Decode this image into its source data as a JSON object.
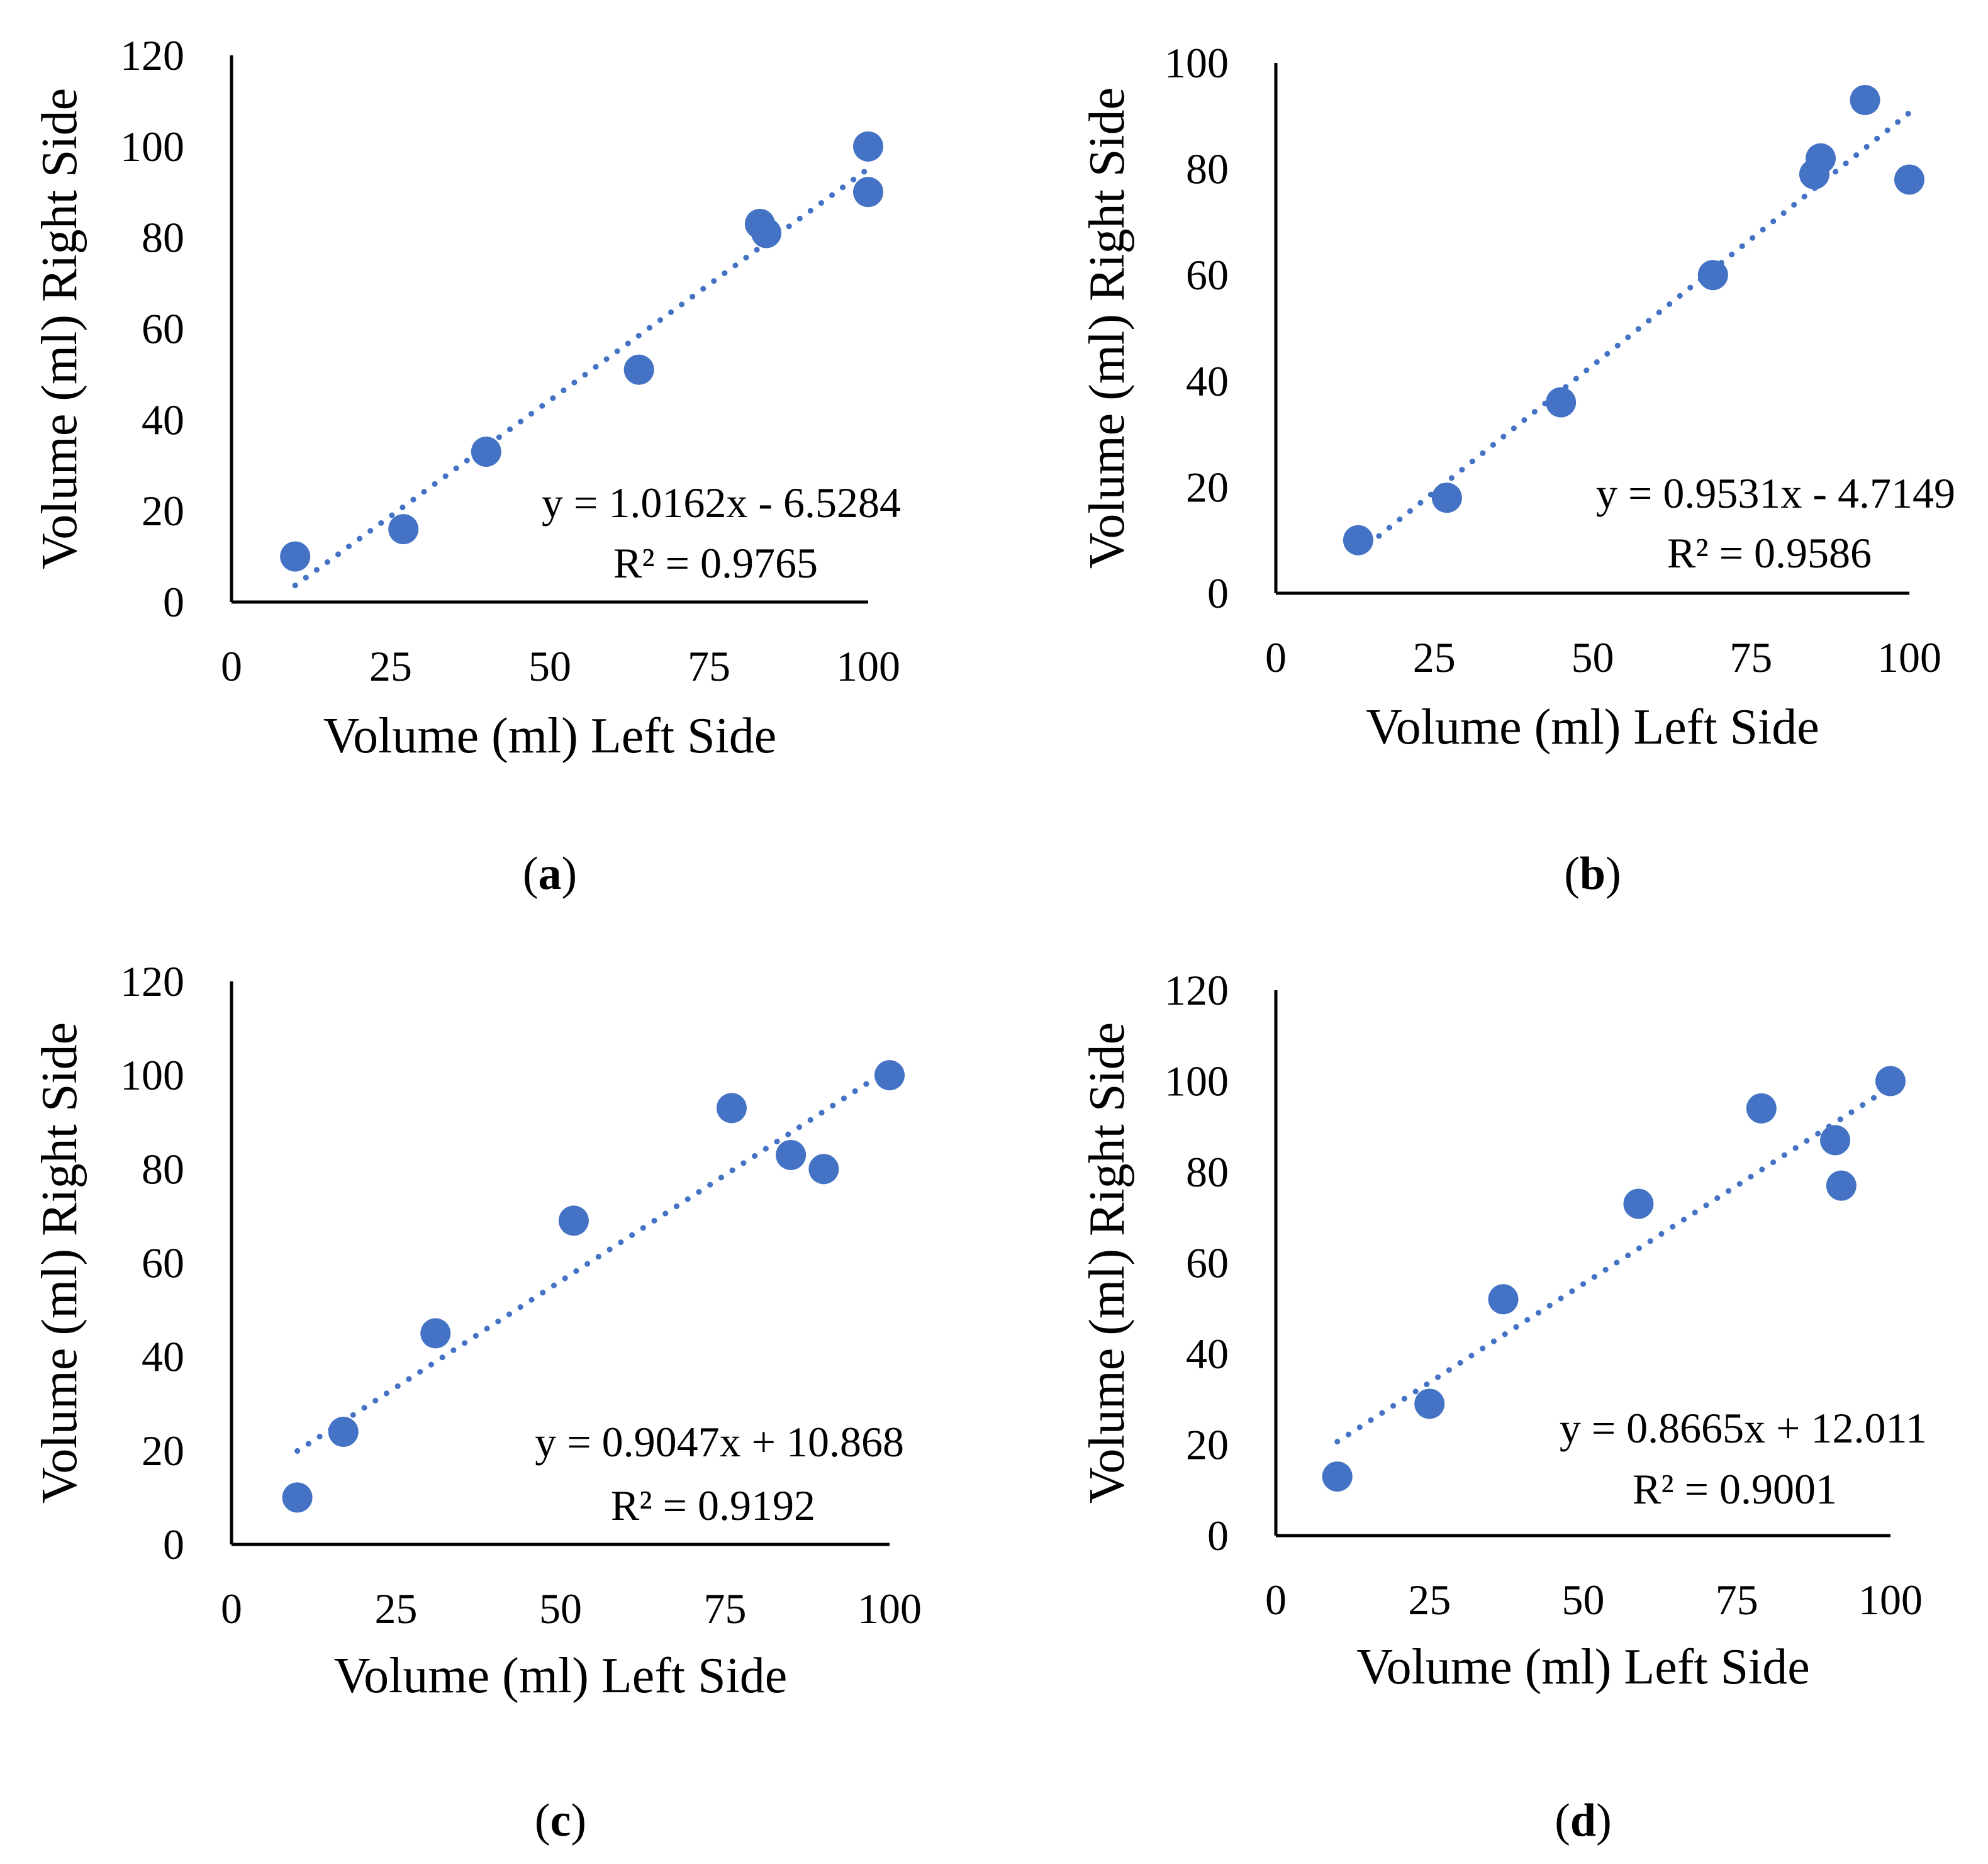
{
  "figure": {
    "colors": {
      "marker": "#4472C4",
      "trendline": "#4472C4",
      "axis": "#000000"
    }
  },
  "chart_data": [
    {
      "type": "scatter",
      "panel_label": "a",
      "xlabel": "Volume (ml) Left Side",
      "ylabel": "Volume (ml) Right Side",
      "xlim": [
        0,
        100
      ],
      "ylim": [
        0,
        120
      ],
      "xticks": [
        "0",
        "25",
        "50",
        "75",
        "100"
      ],
      "yticks": [
        "0",
        "20",
        "40",
        "60",
        "80",
        "100",
        "120"
      ],
      "x": [
        10,
        27,
        40,
        64,
        83,
        84,
        100,
        100
      ],
      "y": [
        10,
        16,
        33,
        51,
        83,
        81,
        100,
        90
      ],
      "trendline": {
        "slope": 1.0162,
        "intercept": -6.5284,
        "x_start": 10,
        "x_end": 100,
        "style": "dotted"
      },
      "equation": "y = 1.0162x - 6.5284",
      "r2_text": "R² = 0.9765"
    },
    {
      "type": "scatter",
      "panel_label": "b",
      "xlabel": "Volume (ml) Left Side",
      "ylabel": "Volume (ml) Right Side",
      "xlim": [
        0,
        100
      ],
      "ylim": [
        0,
        100
      ],
      "xticks": [
        "0",
        "25",
        "50",
        "75",
        "100"
      ],
      "yticks": [
        "0",
        "20",
        "40",
        "60",
        "80",
        "100"
      ],
      "x": [
        13,
        27,
        45,
        69,
        85,
        86,
        93,
        100
      ],
      "y": [
        10,
        18,
        36,
        60,
        79,
        82,
        93,
        78
      ],
      "trendline": {
        "slope": 0.9531,
        "intercept": -4.7149,
        "x_start": 13,
        "x_end": 100,
        "style": "dotted"
      },
      "equation": "y = 0.9531x - 4.7149",
      "r2_text": "R² = 0.9586"
    },
    {
      "type": "scatter",
      "panel_label": "c",
      "xlabel": "Volume (ml) Left Side",
      "ylabel": "Volume (ml) Right Side",
      "xlim": [
        0,
        100
      ],
      "ylim": [
        0,
        120
      ],
      "xticks": [
        "0",
        "25",
        "50",
        "75",
        "100"
      ],
      "yticks": [
        "0",
        "20",
        "40",
        "60",
        "80",
        "100",
        "120"
      ],
      "x": [
        10,
        17,
        31,
        52,
        76,
        85,
        90,
        100
      ],
      "y": [
        10,
        24,
        45,
        69,
        93,
        83,
        80,
        100
      ],
      "trendline": {
        "slope": 0.9047,
        "intercept": 10.868,
        "x_start": 10,
        "x_end": 100,
        "style": "dotted"
      },
      "equation": "y = 0.9047x + 10.868",
      "r2_text": "R² = 0.9192"
    },
    {
      "type": "scatter",
      "panel_label": "d",
      "xlabel": "Volume (ml) Left Side",
      "ylabel": "Volume (ml) Right Side",
      "xlim": [
        0,
        100
      ],
      "ylim": [
        0,
        120
      ],
      "xticks": [
        "0",
        "25",
        "50",
        "75",
        "100"
      ],
      "yticks": [
        "0",
        "20",
        "40",
        "60",
        "80",
        "100",
        "120"
      ],
      "x": [
        10,
        25,
        37,
        59,
        79,
        91,
        92,
        100
      ],
      "y": [
        13,
        29,
        52,
        73,
        94,
        87,
        77,
        100
      ],
      "trendline": {
        "slope": 0.8665,
        "intercept": 12.011,
        "x_start": 10,
        "x_end": 100,
        "style": "dotted"
      },
      "equation": "y = 0.8665x + 12.011",
      "r2_text": "R² = 0.9001"
    }
  ]
}
